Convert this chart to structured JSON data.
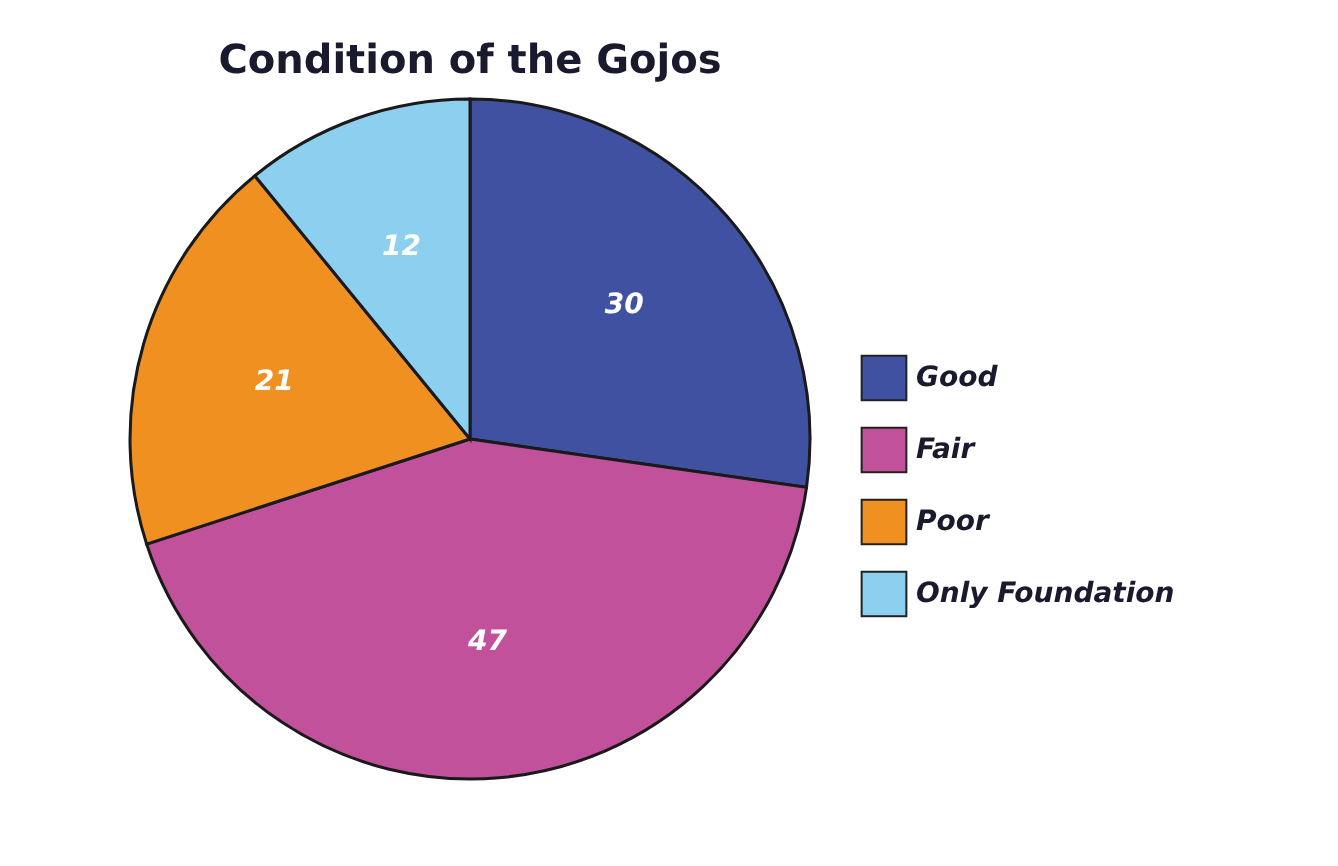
{
  "chart_data": {
    "type": "pie",
    "title": "Condition of the Gojos",
    "categories": [
      "Good",
      "Fair",
      "Poor",
      "Only Foundation"
    ],
    "values": [
      30,
      47,
      21,
      12
    ],
    "colors": [
      "#3f51a0",
      "#c0519a",
      "#f09020",
      "#8ccfef"
    ],
    "data_labels": true,
    "legend": "right"
  }
}
